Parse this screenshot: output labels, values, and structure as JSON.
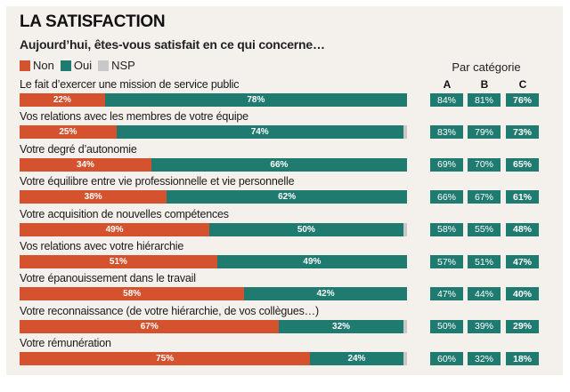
{
  "title": "LA SATISFACTION",
  "subtitle": "Aujourd’hui, êtes-vous satisfait en ce qui concerne…",
  "legend": [
    {
      "label": "Non",
      "color": "#d4522e"
    },
    {
      "label": "Oui",
      "color": "#1f7a70"
    },
    {
      "label": "NSP",
      "color": "#c8c8c8"
    }
  ],
  "category_header": "Par catégorie",
  "category_columns": [
    "A",
    "B",
    "C"
  ],
  "chart_data": {
    "type": "bar",
    "orientation": "horizontal-stacked",
    "title": "LA SATISFACTION",
    "subtitle": "Aujourd’hui, êtes-vous satisfait en ce qui concerne…",
    "xlim": [
      0,
      100
    ],
    "categories": [
      "Le fait d’exercer une mission de service public",
      "Vos relations avec les membres de votre équipe",
      "Votre degré d’autonomie",
      "Votre équilibre entre vie professionnelle et vie personnelle",
      "Votre acquisition de nouvelles compétences",
      "Vos relations avec votre hiérarchie",
      "Votre épanouissement dans le travail",
      "Votre reconnaissance (de votre hiérarchie, de vos collègues…)",
      "Votre rémunération"
    ],
    "series": [
      {
        "name": "Non",
        "color": "#d4522e",
        "values": [
          22,
          25,
          34,
          38,
          49,
          51,
          58,
          67,
          75
        ]
      },
      {
        "name": "Oui",
        "color": "#1f7a70",
        "values": [
          78,
          74,
          66,
          62,
          50,
          49,
          42,
          32,
          24
        ]
      },
      {
        "name": "NSP",
        "color": "#c8c8c8",
        "values": [
          0,
          1,
          0,
          0,
          1,
          0,
          0,
          1,
          1
        ]
      }
    ],
    "labels_non": [
      "22%",
      "25%",
      "34%",
      "38%",
      "49%",
      "51%",
      "58%",
      "67%",
      "75%"
    ],
    "labels_oui": [
      "78%",
      "74%",
      "66%",
      "62%",
      "50%",
      "49%",
      "42%",
      "32%",
      "24%"
    ],
    "by_category": {
      "A": [
        "84%",
        "83%",
        "69%",
        "66%",
        "58%",
        "57%",
        "47%",
        "50%",
        "60%"
      ],
      "B": [
        "81%",
        "79%",
        "70%",
        "67%",
        "55%",
        "51%",
        "44%",
        "39%",
        "32%"
      ],
      "C": [
        "76%",
        "73%",
        "65%",
        "61%",
        "48%",
        "47%",
        "40%",
        "29%",
        "18%"
      ]
    }
  }
}
